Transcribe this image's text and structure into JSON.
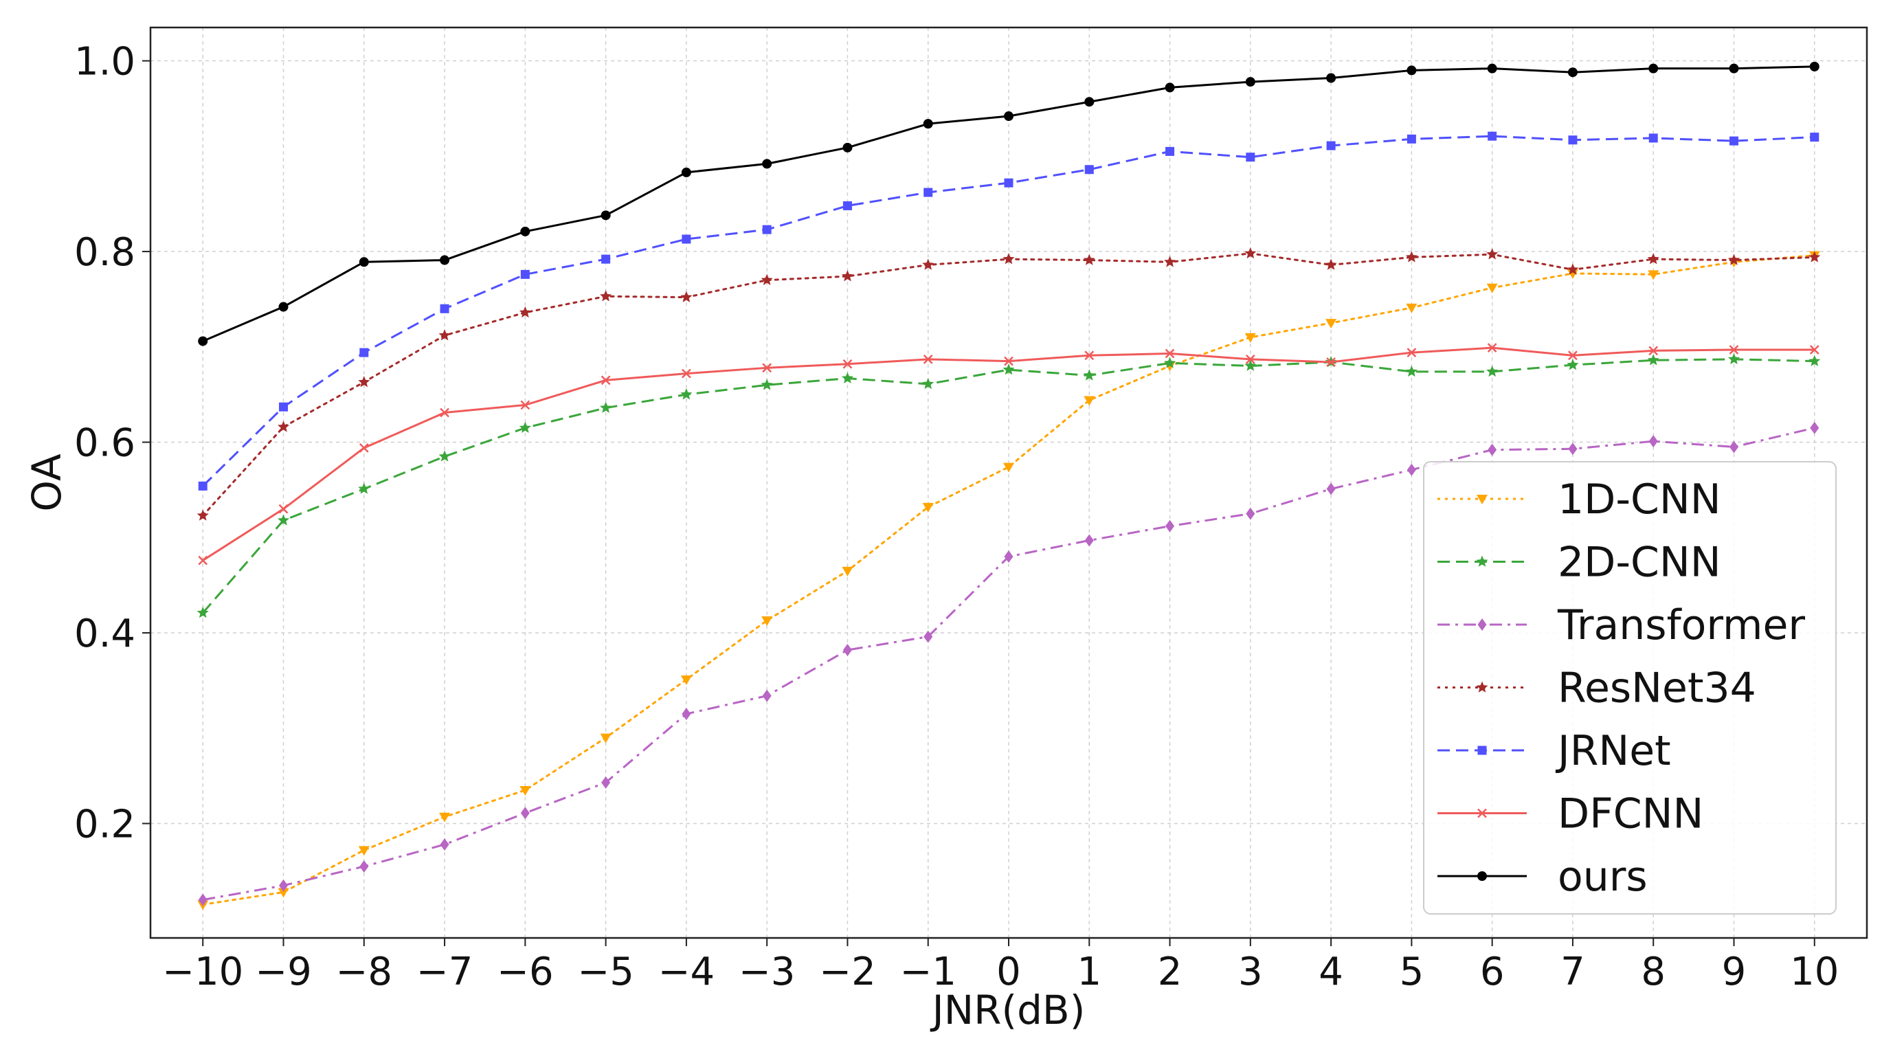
{
  "chart_data": {
    "type": "line",
    "xlabel": "JNR(dB)",
    "ylabel": "OA",
    "x": [
      -10,
      -9,
      -8,
      -7,
      -6,
      -5,
      -4,
      -3,
      -2,
      -1,
      0,
      1,
      2,
      3,
      4,
      5,
      6,
      7,
      8,
      9,
      10
    ],
    "x_tick_labels": [
      "−10",
      "−9",
      "−8",
      "−7",
      "−6",
      "−5",
      "−4",
      "−3",
      "−2",
      "−1",
      "0",
      "1",
      "2",
      "3",
      "4",
      "5",
      "6",
      "7",
      "8",
      "9",
      "10"
    ],
    "xlim": [
      -10.65,
      10.65
    ],
    "ylim": [
      0.08,
      1.035
    ],
    "y_ticks": [
      0.2,
      0.4,
      0.6,
      0.8,
      1.0
    ],
    "y_tick_labels": [
      "0.2",
      "0.4",
      "0.6",
      "0.8",
      "1.0"
    ],
    "grid": true,
    "legend_position": "lower-right",
    "series": [
      {
        "name": "1D-CNN",
        "color": "#ffa500",
        "linestyle": "dotted",
        "marker": "triangle-down",
        "values": [
          0.115,
          0.128,
          0.172,
          0.207,
          0.235,
          0.29,
          0.351,
          0.413,
          0.465,
          0.532,
          0.574,
          0.644,
          0.68,
          0.71,
          0.725,
          0.741,
          0.762,
          0.777,
          0.776,
          0.789,
          0.796
        ]
      },
      {
        "name": "2D-CNN",
        "color": "#3aa63a",
        "linestyle": "dashed",
        "marker": "star",
        "values": [
          0.421,
          0.518,
          0.551,
          0.585,
          0.615,
          0.636,
          0.65,
          0.66,
          0.667,
          0.661,
          0.676,
          0.67,
          0.683,
          0.68,
          0.684,
          0.674,
          0.674,
          0.681,
          0.686,
          0.687,
          0.685
        ]
      },
      {
        "name": "Transformer",
        "color": "#b865c4",
        "linestyle": "dashdot",
        "marker": "diamond",
        "values": [
          0.12,
          0.135,
          0.155,
          0.178,
          0.211,
          0.243,
          0.315,
          0.334,
          0.382,
          0.396,
          0.48,
          0.497,
          0.512,
          0.525,
          0.551,
          0.571,
          0.592,
          0.593,
          0.601,
          0.595,
          0.615
        ]
      },
      {
        "name": "ResNet34",
        "color": "#a52a2a",
        "linestyle": "dotted",
        "marker": "star",
        "values": [
          0.523,
          0.616,
          0.663,
          0.712,
          0.736,
          0.753,
          0.752,
          0.77,
          0.774,
          0.786,
          0.792,
          0.791,
          0.789,
          0.798,
          0.786,
          0.794,
          0.797,
          0.781,
          0.792,
          0.791,
          0.794
        ]
      },
      {
        "name": "JRNet",
        "color": "#5050ff",
        "linestyle": "dashed",
        "marker": "square",
        "values": [
          0.554,
          0.637,
          0.694,
          0.74,
          0.776,
          0.792,
          0.813,
          0.823,
          0.848,
          0.862,
          0.872,
          0.886,
          0.905,
          0.899,
          0.911,
          0.918,
          0.921,
          0.917,
          0.919,
          0.916,
          0.92
        ]
      },
      {
        "name": "DFCNN",
        "color": "#f05a5a",
        "linestyle": "solid",
        "marker": "x",
        "values": [
          0.476,
          0.53,
          0.594,
          0.631,
          0.639,
          0.665,
          0.672,
          0.678,
          0.682,
          0.687,
          0.685,
          0.691,
          0.693,
          0.687,
          0.684,
          0.694,
          0.699,
          0.691,
          0.696,
          0.697,
          0.697
        ]
      },
      {
        "name": "ours",
        "color": "#000000",
        "linestyle": "solid",
        "marker": "circle",
        "values": [
          0.706,
          0.742,
          0.789,
          0.791,
          0.821,
          0.838,
          0.883,
          0.892,
          0.909,
          0.934,
          0.942,
          0.957,
          0.972,
          0.978,
          0.982,
          0.99,
          0.992,
          0.988,
          0.992,
          0.992,
          0.994
        ]
      }
    ]
  }
}
